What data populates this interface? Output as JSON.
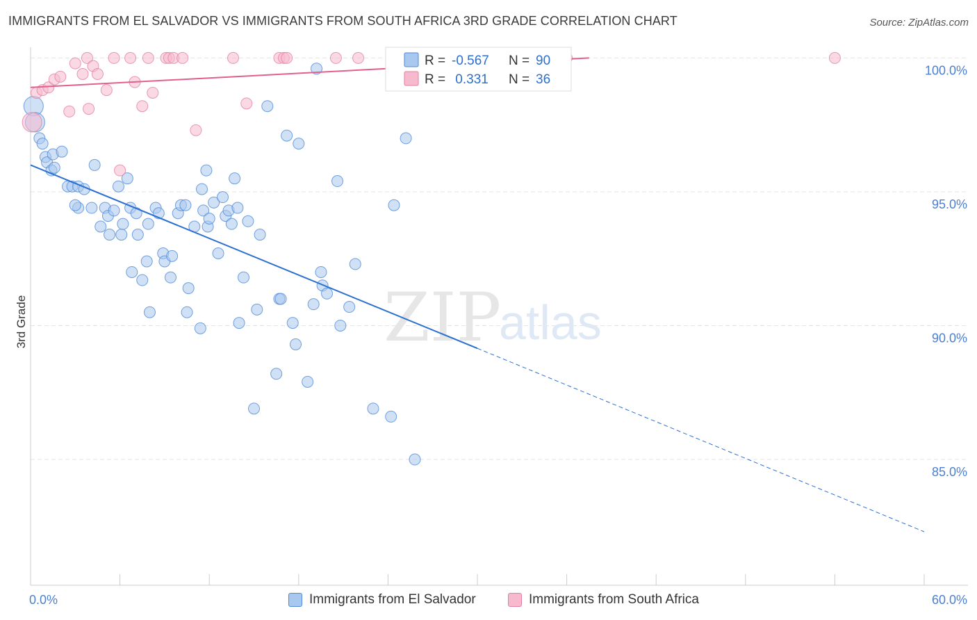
{
  "header": {
    "title": "IMMIGRANTS FROM EL SALVADOR VS IMMIGRANTS FROM SOUTH AFRICA 3RD GRADE CORRELATION CHART",
    "source": "Source: ZipAtlas.com"
  },
  "watermark": {
    "zip": "ZIP",
    "atlas": "atlas"
  },
  "legend_box": {
    "rows": [
      {
        "r_label": "R = ",
        "r_value": "-0.567",
        "n_label": "N = ",
        "n_value": "90"
      },
      {
        "r_label": "R = ",
        "r_value": " 0.331",
        "n_label": "N = ",
        "n_value": "36"
      }
    ]
  },
  "bottom_legend": {
    "items": [
      {
        "label": "Immigrants from El Salvador"
      },
      {
        "label": "Immigrants from South Africa"
      }
    ]
  },
  "colors": {
    "blue_fill": "#a9c8ef",
    "blue_stroke": "#4f8ad8",
    "blue_line": "#2b6fd1",
    "pink_fill": "#f7b9cd",
    "pink_stroke": "#e47fa0",
    "pink_line": "#e0608a",
    "tick_text": "#4a7fd0",
    "grid": "#e3e3e3"
  },
  "chart_data": {
    "type": "scatter",
    "title": "IMMIGRANTS FROM EL SALVADOR VS IMMIGRANTS FROM SOUTH AFRICA 3RD GRADE CORRELATION CHART",
    "xlabel": "",
    "ylabel": "3rd Grade",
    "xlim": [
      0,
      60
    ],
    "ylim": [
      80.3,
      100.4
    ],
    "x_tick_labels": [
      "0.0%",
      "60.0%"
    ],
    "y_ticks": [
      100,
      95,
      90,
      85
    ],
    "y_tick_labels": [
      "100.0%",
      "95.0%",
      "90.0%",
      "85.0%"
    ],
    "legend_position": "top-center",
    "grid": true,
    "series": [
      {
        "name": "Immigrants from El Salvador",
        "R": -0.567,
        "N": 90,
        "trend": {
          "x0": 0,
          "y0": 96.0,
          "x_solid_end": 30,
          "x1": 60,
          "y1": 82.3
        },
        "points": [
          [
            0.2,
            98.2
          ],
          [
            0.3,
            97.6
          ],
          [
            0.6,
            97.0
          ],
          [
            0.8,
            96.8
          ],
          [
            1.0,
            96.3
          ],
          [
            1.1,
            96.1
          ],
          [
            1.5,
            96.4
          ],
          [
            1.4,
            95.8
          ],
          [
            1.6,
            95.9
          ],
          [
            2.1,
            96.5
          ],
          [
            2.5,
            95.2
          ],
          [
            2.8,
            95.2
          ],
          [
            3.2,
            95.2
          ],
          [
            3.6,
            95.1
          ],
          [
            3.2,
            94.4
          ],
          [
            4.1,
            94.4
          ],
          [
            4.3,
            96.0
          ],
          [
            4.7,
            93.7
          ],
          [
            5.0,
            94.4
          ],
          [
            5.2,
            94.1
          ],
          [
            5.3,
            93.4
          ],
          [
            5.6,
            94.3
          ],
          [
            5.9,
            95.2
          ],
          [
            6.1,
            93.4
          ],
          [
            6.2,
            93.8
          ],
          [
            6.5,
            95.5
          ],
          [
            6.7,
            94.4
          ],
          [
            7.1,
            94.2
          ],
          [
            7.2,
            93.4
          ],
          [
            6.8,
            92.0
          ],
          [
            7.5,
            91.7
          ],
          [
            7.8,
            92.4
          ],
          [
            7.9,
            93.8
          ],
          [
            8.4,
            94.4
          ],
          [
            8.6,
            94.2
          ],
          [
            8.9,
            92.7
          ],
          [
            9.0,
            92.4
          ],
          [
            9.4,
            91.8
          ],
          [
            9.5,
            92.6
          ],
          [
            9.9,
            94.2
          ],
          [
            10.1,
            94.5
          ],
          [
            10.4,
            94.5
          ],
          [
            10.5,
            90.5
          ],
          [
            10.6,
            91.4
          ],
          [
            11.0,
            93.7
          ],
          [
            11.4,
            89.9
          ],
          [
            11.5,
            95.1
          ],
          [
            11.6,
            94.3
          ],
          [
            11.8,
            95.8
          ],
          [
            11.9,
            93.7
          ],
          [
            12.3,
            94.6
          ],
          [
            12.6,
            92.7
          ],
          [
            12.9,
            94.8
          ],
          [
            13.1,
            94.1
          ],
          [
            13.3,
            94.3
          ],
          [
            13.5,
            93.8
          ],
          [
            13.7,
            95.5
          ],
          [
            13.9,
            94.4
          ],
          [
            14.3,
            91.8
          ],
          [
            14.6,
            93.9
          ],
          [
            15.2,
            90.6
          ],
          [
            15.4,
            93.4
          ],
          [
            15.9,
            98.2
          ],
          [
            16.5,
            88.2
          ],
          [
            16.7,
            91.0
          ],
          [
            16.8,
            91.0
          ],
          [
            17.2,
            97.1
          ],
          [
            17.6,
            90.1
          ],
          [
            17.8,
            89.3
          ],
          [
            18.0,
            96.8
          ],
          [
            18.6,
            87.9
          ],
          [
            19.0,
            90.8
          ],
          [
            19.5,
            92.0
          ],
          [
            19.6,
            91.5
          ],
          [
            19.9,
            91.2
          ],
          [
            19.2,
            99.6
          ],
          [
            20.6,
            95.4
          ],
          [
            20.8,
            90.0
          ],
          [
            21.4,
            90.7
          ],
          [
            21.8,
            92.3
          ],
          [
            23.0,
            86.9
          ],
          [
            24.2,
            86.6
          ],
          [
            24.4,
            94.5
          ],
          [
            25.2,
            97.0
          ],
          [
            25.8,
            85.0
          ],
          [
            14.0,
            90.1
          ],
          [
            15.0,
            86.9
          ],
          [
            12.0,
            94.0
          ],
          [
            8.0,
            90.5
          ],
          [
            3.0,
            94.5
          ]
        ]
      },
      {
        "name": "Immigrants from South Africa",
        "R": 0.331,
        "N": 36,
        "trend": {
          "x0": 0,
          "y0": 98.9,
          "x1": 37.5,
          "y1": 100.0
        },
        "points": [
          [
            0.1,
            97.6
          ],
          [
            0.4,
            98.7
          ],
          [
            0.8,
            98.8
          ],
          [
            1.2,
            98.9
          ],
          [
            1.6,
            99.2
          ],
          [
            2.0,
            99.3
          ],
          [
            2.6,
            98.0
          ],
          [
            3.0,
            99.8
          ],
          [
            3.5,
            99.4
          ],
          [
            3.8,
            100.0
          ],
          [
            3.9,
            98.1
          ],
          [
            4.2,
            99.7
          ],
          [
            4.5,
            99.4
          ],
          [
            5.1,
            98.8
          ],
          [
            5.6,
            100.0
          ],
          [
            6.0,
            95.8
          ],
          [
            6.7,
            100.0
          ],
          [
            7.0,
            99.1
          ],
          [
            7.5,
            98.2
          ],
          [
            7.9,
            100.0
          ],
          [
            8.2,
            98.7
          ],
          [
            9.1,
            100.0
          ],
          [
            9.3,
            100.0
          ],
          [
            9.6,
            100.0
          ],
          [
            10.2,
            100.0
          ],
          [
            11.1,
            97.3
          ],
          [
            13.6,
            100.0
          ],
          [
            14.5,
            98.3
          ],
          [
            16.7,
            100.0
          ],
          [
            17.0,
            100.0
          ],
          [
            17.2,
            100.0
          ],
          [
            20.5,
            100.0
          ],
          [
            22.0,
            100.0
          ],
          [
            35.3,
            100.0
          ],
          [
            36.0,
            100.0
          ],
          [
            54.0,
            100.0
          ]
        ]
      }
    ]
  }
}
